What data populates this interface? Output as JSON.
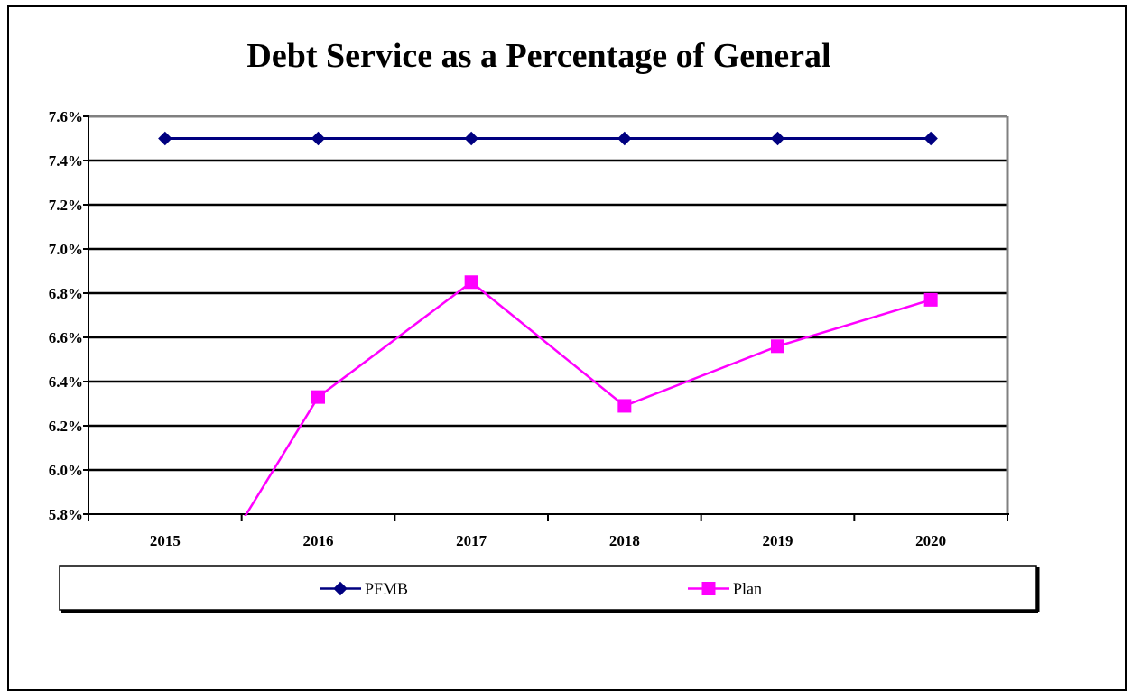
{
  "chart_data": {
    "type": "line",
    "title": "Debt Service as a Percentage of General",
    "xlabel": "",
    "ylabel": "",
    "categories": [
      "2015",
      "2016",
      "2017",
      "2018",
      "2019",
      "2020"
    ],
    "ylim": [
      5.8,
      7.6
    ],
    "yticks": [
      "5.8%",
      "6.0%",
      "6.2%",
      "6.4%",
      "6.6%",
      "6.8%",
      "7.0%",
      "7.2%",
      "7.4%",
      "7.6%"
    ],
    "ytick_values": [
      5.8,
      6.0,
      6.2,
      6.4,
      6.6,
      6.8,
      7.0,
      7.2,
      7.4,
      7.6
    ],
    "grid": true,
    "legend_position": "bottom",
    "series": [
      {
        "name": "PFMB",
        "color": "#000080",
        "marker": "diamond",
        "values": [
          7.5,
          7.5,
          7.5,
          7.5,
          7.5,
          7.5
        ]
      },
      {
        "name": "Plan",
        "color": "#FF00FF",
        "marker": "square",
        "values": [
          5.2,
          6.33,
          6.85,
          6.29,
          6.56,
          6.77
        ]
      }
    ]
  }
}
